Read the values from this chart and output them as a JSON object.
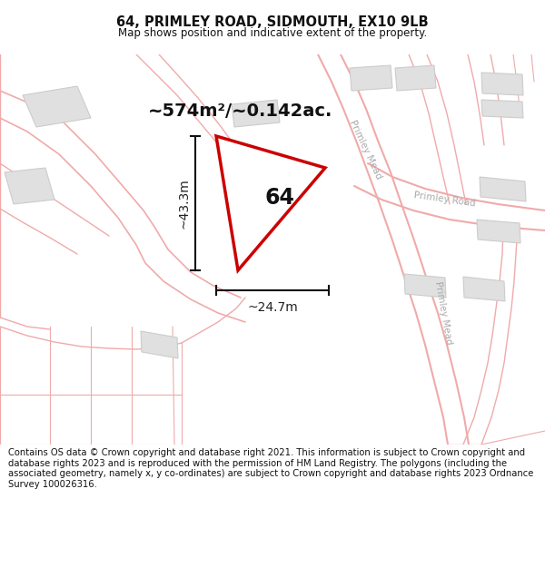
{
  "title": "64, PRIMLEY ROAD, SIDMOUTH, EX10 9LB",
  "subtitle": "Map shows position and indicative extent of the property.",
  "footer": "Contains OS data © Crown copyright and database right 2021. This information is subject to Crown copyright and database rights 2023 and is reproduced with the permission of HM Land Registry. The polygons (including the associated geometry, namely x, y co-ordinates) are subject to Crown copyright and database rights 2023 Ordnance Survey 100026316.",
  "area_label": "~574m²/~0.142ac.",
  "plot_number": "64",
  "dim_width": "~24.7m",
  "dim_height": "~43.3m",
  "bg_color": "#ffffff",
  "plot_edge_color": "#cc0000",
  "road_color": "#f0aaaa",
  "building_color": "#e0e0e0",
  "building_edge_color": "#cccccc",
  "road_label_color": "#aaaaaa",
  "dim_label_color": "#222222",
  "title_fontsize": 10.5,
  "subtitle_fontsize": 8.5,
  "footer_fontsize": 7.2,
  "area_fontsize": 14,
  "number_fontsize": 17,
  "dim_fontsize": 10
}
